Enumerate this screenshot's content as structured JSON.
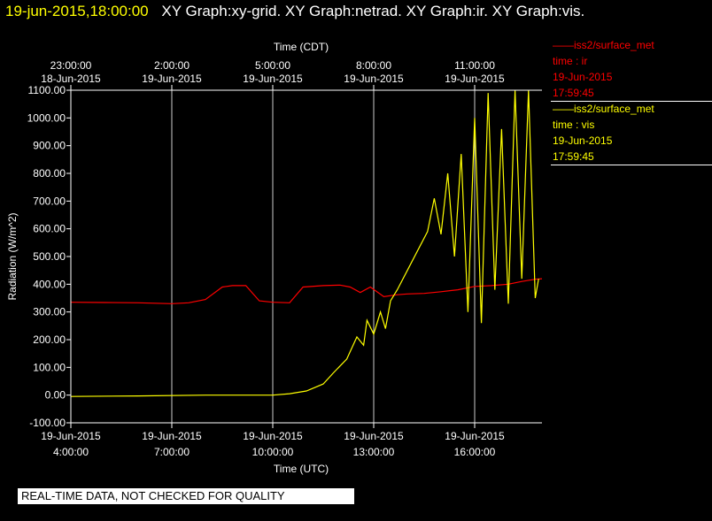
{
  "header": {
    "timestamp": "19-jun-2015,18:00:00",
    "titles": [
      "XY Graph:xy-grid.",
      "XY Graph:netrad.",
      "XY Graph:ir.",
      "XY Graph:vis."
    ]
  },
  "legend": [
    {
      "label": "——iss2/surface_met",
      "var": "time : ir",
      "date": "19-Jun-2015",
      "time": "17:59:45",
      "color": "#ff0000"
    },
    {
      "label": "——iss2/surface_met",
      "var": "time : vis",
      "date": "19-Jun-2015",
      "time": "17:59:45",
      "color": "#ffff00"
    }
  ],
  "disclaimer": "REAL-TIME DATA, NOT CHECKED FOR QUALITY",
  "chart_data": {
    "type": "line",
    "title": "",
    "xlabel_top": "Time (CDT)",
    "xlabel": "Time (UTC)",
    "ylabel": "Radiation  (W/m^2)",
    "ylim": [
      -100,
      1100
    ],
    "xlim": [
      4.0,
      18.0
    ],
    "grid": true,
    "yticks": [
      "1100.00",
      "1000.00",
      "900.00",
      "800.00",
      "700.00",
      "600.00",
      "500.00",
      "400.00",
      "300.00",
      "200.00",
      "100.00",
      "0.00",
      "-100.00"
    ],
    "xticks_bottom": [
      {
        "date": "19-Jun-2015",
        "time": "4:00:00"
      },
      {
        "date": "19-Jun-2015",
        "time": "7:00:00"
      },
      {
        "date": "19-Jun-2015",
        "time": "10:00:00"
      },
      {
        "date": "19-Jun-2015",
        "time": "13:00:00"
      },
      {
        "date": "19-Jun-2015",
        "time": "16:00:00"
      }
    ],
    "xticks_top": [
      {
        "time": "23:00:00",
        "date": "18-Jun-2015"
      },
      {
        "time": "2:00:00",
        "date": "19-Jun-2015"
      },
      {
        "time": "5:00:00",
        "date": "19-Jun-2015"
      },
      {
        "time": "8:00:00",
        "date": "19-Jun-2015"
      },
      {
        "time": "11:00:00",
        "date": "19-Jun-2015"
      }
    ],
    "series": [
      {
        "name": "time : ir",
        "color": "#ff0000",
        "x": [
          4.0,
          5.0,
          6.0,
          7.0,
          7.5,
          8.0,
          8.5,
          8.8,
          9.2,
          9.6,
          10.0,
          10.5,
          10.9,
          11.5,
          12.0,
          12.3,
          12.6,
          12.9,
          13.3,
          13.7,
          14.0,
          14.5,
          15.0,
          15.5,
          16.0,
          16.5,
          17.0,
          17.4,
          17.8,
          18.0
        ],
        "y": [
          335,
          334,
          333,
          330,
          333,
          345,
          390,
          395,
          395,
          340,
          335,
          333,
          390,
          395,
          397,
          390,
          370,
          390,
          355,
          362,
          365,
          367,
          373,
          380,
          392,
          395,
          400,
          410,
          418,
          420
        ]
      },
      {
        "name": "time : vis",
        "color": "#ffff00",
        "x": [
          4.0,
          6.0,
          8.0,
          9.0,
          10.0,
          10.5,
          11.0,
          11.5,
          11.8,
          12.2,
          12.5,
          12.7,
          12.8,
          13.0,
          13.2,
          13.35,
          13.5,
          13.7,
          14.0,
          14.3,
          14.6,
          14.8,
          15.0,
          15.2,
          15.4,
          15.6,
          15.8,
          16.0,
          16.2,
          16.4,
          16.6,
          16.8,
          17.0,
          17.2,
          17.4,
          17.6,
          17.8,
          17.9
        ],
        "y": [
          -5,
          -3,
          0,
          0,
          0,
          5,
          15,
          40,
          80,
          130,
          210,
          180,
          270,
          220,
          300,
          240,
          340,
          380,
          450,
          520,
          590,
          710,
          580,
          800,
          500,
          870,
          300,
          1000,
          260,
          1090,
          380,
          960,
          330,
          1100,
          420,
          1100,
          350,
          420
        ]
      }
    ]
  }
}
